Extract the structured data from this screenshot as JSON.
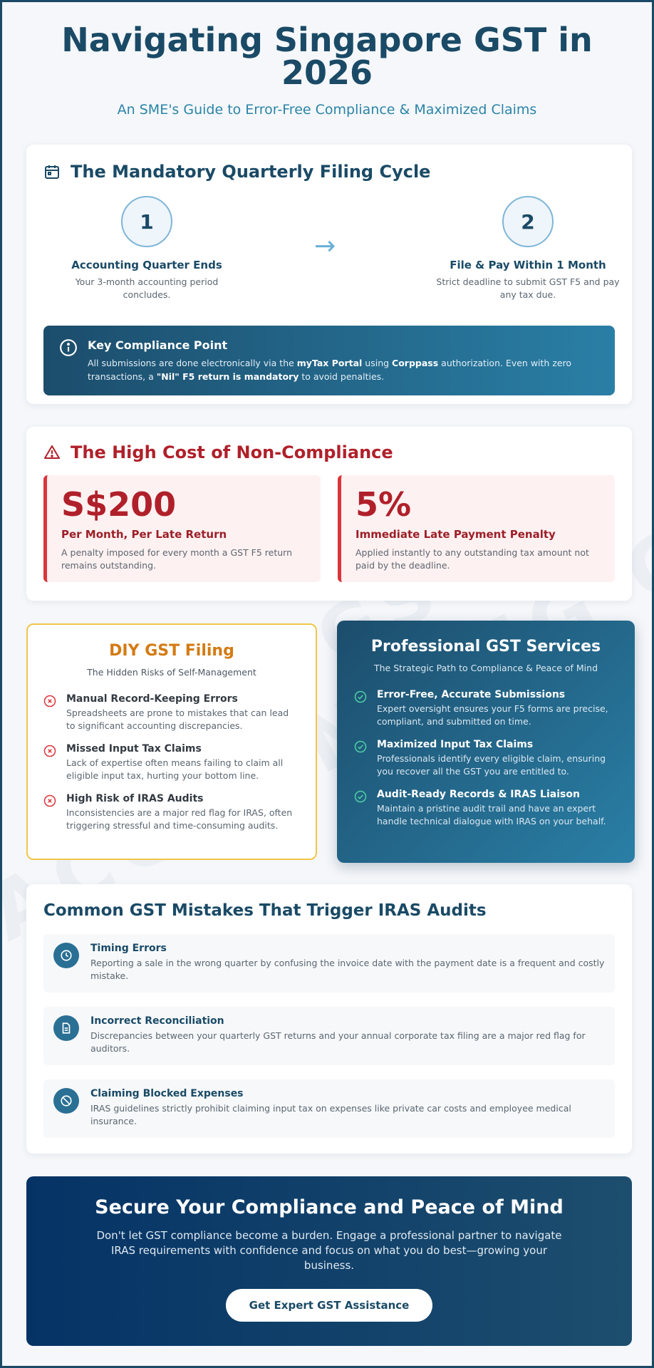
{
  "header": {
    "title": "Navigating Singapore GST in 2026",
    "subtitle": "An SME's Guide to Error-Free Compliance & Maximized Claims"
  },
  "filing_cycle": {
    "heading": "The Mandatory Quarterly Filing Cycle",
    "icon": "calendar-icon",
    "steps": [
      {
        "number": "1",
        "title": "Accounting Quarter Ends",
        "desc": "Your 3-month accounting period concludes."
      },
      {
        "number": "2",
        "title": "File & Pay Within 1 Month",
        "desc": "Strict deadline to submit GST F5 and pay any tax due."
      }
    ],
    "arrow": "→",
    "key_point": {
      "title": "Key Compliance Point",
      "text_1": "All submissions are done electronically via the ",
      "bold_1": "myTax Portal",
      "text_2": " using ",
      "bold_2": "Corppass",
      "text_3": " authorization. Even with zero transactions, a ",
      "bold_3": "\"Nil\" F5 return is mandatory",
      "text_4": " to avoid penalties."
    }
  },
  "cost": {
    "heading": "The High Cost of Non-Compliance",
    "icon": "warning-icon",
    "items": [
      {
        "value": "S$200",
        "title": "Per Month, Per Late Return",
        "desc": "A penalty imposed for every month a GST F5 return remains outstanding."
      },
      {
        "value": "5%",
        "title": "Immediate Late Payment Penalty",
        "desc": "Applied instantly to any outstanding tax amount not paid by the deadline."
      }
    ]
  },
  "diy": {
    "title": "DIY GST Filing",
    "subtitle": "The Hidden Risks of Self-Management",
    "items": [
      {
        "title": "Manual Record-Keeping Errors",
        "desc": "Spreadsheets are prone to mistakes that can lead to significant accounting discrepancies."
      },
      {
        "title": "Missed Input Tax Claims",
        "desc": "Lack of expertise often means failing to claim all eligible input tax, hurting your bottom line."
      },
      {
        "title": "High Risk of IRAS Audits",
        "desc": "Inconsistencies are a major red flag for IRAS, often triggering stressful and time-consuming audits."
      }
    ]
  },
  "pro": {
    "title": "Professional GST Services",
    "subtitle": "The Strategic Path to Compliance & Peace of Mind",
    "items": [
      {
        "title": "Error-Free, Accurate Submissions",
        "desc": "Expert oversight ensures your F5 forms are precise, compliant, and submitted on time."
      },
      {
        "title": "Maximized Input Tax Claims",
        "desc": "Professionals identify every eligible claim, ensuring you recover all the GST you are entitled to."
      },
      {
        "title": "Audit-Ready Records & IRAS Liaison",
        "desc": "Maintain a pristine audit trail and have an expert handle technical dialogue with IRAS on your behalf."
      }
    ]
  },
  "mistakes": {
    "heading": "Common GST Mistakes That Trigger IRAS Audits",
    "items": [
      {
        "icon": "clock-icon",
        "title": "Timing Errors",
        "desc": "Reporting a sale in the wrong quarter by confusing the invoice date with the payment date is a frequent and costly mistake."
      },
      {
        "icon": "document-icon",
        "title": "Incorrect Reconciliation",
        "desc": "Discrepancies between your quarterly GST returns and your annual corporate tax filing are a major red flag for auditors."
      },
      {
        "icon": "prohibited-icon",
        "title": "Claiming Blocked Expenses",
        "desc": "IRAS guidelines strictly prohibit claiming input tax on expenses like private car costs and employee medical insurance."
      }
    ]
  },
  "cta": {
    "title": "Secure Your Compliance and Peace of Mind",
    "text": "Don't let GST compliance become a burden. Engage a professional partner to navigate IRAS requirements with confidence and focus on what you do best—growing your business.",
    "button": "Get Expert GST Assistance"
  },
  "colors": {
    "primary": "#1a4a66",
    "accent": "#2b84a8",
    "danger": "#b0202a",
    "diy_accent": "#d37b13",
    "success": "#4fd1a5"
  }
}
